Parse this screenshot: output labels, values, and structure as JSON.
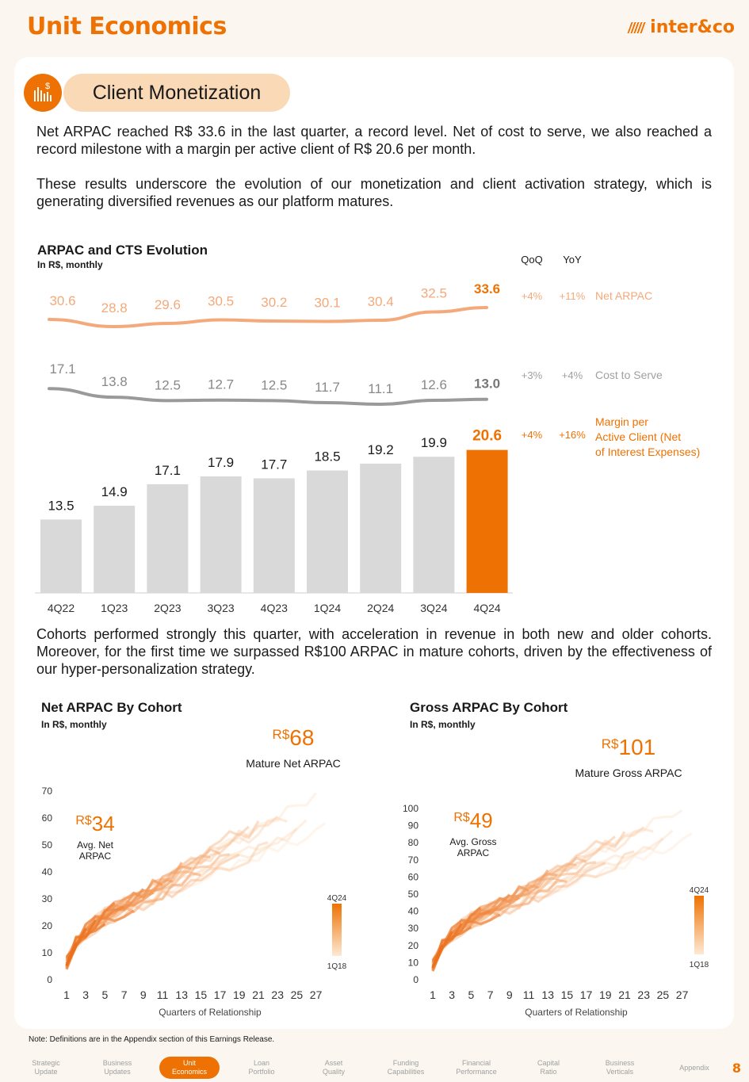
{
  "header": {
    "title": "Unit Economics",
    "logo": "inter&co"
  },
  "section": {
    "icon": "bar-chart-dollar-icon",
    "label": "Client Monetization"
  },
  "paragraphs": {
    "p1": "Net ARPAC reached R$ 33.6 in the last quarter, a record level. Net of cost to serve, we also reached a record milestone with a margin per active client of R$ 20.6 per month.",
    "p2": "These results underscore the evolution of our monetization and client activation strategy, which is generating diversified revenues as our platform matures.",
    "p3": "Cohorts performed strongly this quarter, with acceleration in revenue in both new and older cohorts. Moreover, for the first time we surpassed R$100 ARPAC in mature cohorts, driven by the effectiveness of our hyper-personalization strategy."
  },
  "colors": {
    "accent": "#ee7203",
    "light_accent": "#f4a97a",
    "grey_line": "#9a9a9a",
    "bar_grey": "#d9d9d9"
  },
  "chart_data": [
    {
      "type": "bar",
      "title": "ARPAC and CTS Evolution",
      "subtitle": "In R$, monthly",
      "categories": [
        "4Q22",
        "1Q23",
        "2Q23",
        "3Q23",
        "4Q23",
        "1Q24",
        "2Q24",
        "3Q24",
        "4Q24"
      ],
      "series": [
        {
          "name": "Net ARPAC",
          "type": "line",
          "values": [
            30.6,
            28.8,
            29.6,
            30.5,
            30.2,
            30.1,
            30.4,
            32.5,
            33.6
          ],
          "qoq": "+4%",
          "yoy": "+11%"
        },
        {
          "name": "Cost to Serve",
          "type": "line",
          "values": [
            17.1,
            13.8,
            12.5,
            12.7,
            12.5,
            11.7,
            11.1,
            12.6,
            13.0
          ],
          "qoq": "+3%",
          "yoy": "+4%"
        },
        {
          "name": "Margin per Active Client (Net of Interest Expenses)",
          "type": "bar",
          "values": [
            13.5,
            14.9,
            17.1,
            17.9,
            17.7,
            18.5,
            19.2,
            19.9,
            20.6
          ],
          "qoq": "+4%",
          "yoy": "+16%"
        }
      ],
      "labels": {
        "arpac": [
          "30.6",
          "28.8",
          "29.6",
          "30.5",
          "30.2",
          "30.1",
          "30.4",
          "32.5",
          "33.6"
        ],
        "cts": [
          "17.1",
          "13.8",
          "12.5",
          "12.7",
          "12.5",
          "11.7",
          "11.1",
          "12.6",
          "13.0"
        ],
        "margin": [
          "13.5",
          "14.9",
          "17.1",
          "17.9",
          "17.7",
          "18.5",
          "19.2",
          "19.9",
          "20.6"
        ]
      },
      "table_headers": {
        "qoq": "QoQ",
        "yoy": "YoY"
      },
      "legend": {
        "arpac": "Net ARPAC",
        "cts": "Cost to Serve",
        "margin_l1": "Margin per",
        "margin_l2": "Active Client (Net",
        "margin_l3": "of Interest Expenses)"
      }
    },
    {
      "type": "line",
      "title": "Net ARPAC By Cohort",
      "subtitle": "In R$, monthly",
      "xlabel": "Quarters of Relationship",
      "xticks": [
        "1",
        "3",
        "5",
        "7",
        "9",
        "11",
        "13",
        "15",
        "17",
        "19",
        "21",
        "23",
        "25",
        "27"
      ],
      "yticks": [
        "0",
        "10",
        "20",
        "30",
        "40",
        "50",
        "60",
        "70"
      ],
      "ylim": [
        0,
        70
      ],
      "mature_value": "68",
      "mature_label": "Mature Net ARPAC",
      "avg_value": "34",
      "avg_label_l1": "Avg. Net",
      "avg_label_l2": "ARPAC",
      "currency": "R$",
      "legend_top": "4Q24",
      "legend_bottom": "1Q18"
    },
    {
      "type": "line",
      "title": "Gross ARPAC By Cohort",
      "subtitle": "In R$, monthly",
      "xlabel": "Quarters of Relationship",
      "xticks": [
        "1",
        "3",
        "5",
        "7",
        "9",
        "11",
        "13",
        "15",
        "17",
        "19",
        "21",
        "23",
        "25",
        "27"
      ],
      "yticks": [
        "0",
        "10",
        "20",
        "30",
        "40",
        "50",
        "60",
        "70",
        "80",
        "90",
        "100"
      ],
      "ylim": [
        0,
        100
      ],
      "mature_value": "101",
      "mature_label": "Mature Gross ARPAC",
      "avg_value": "49",
      "avg_label_l1": "Avg. Gross",
      "avg_label_l2": "ARPAC",
      "currency": "R$",
      "legend_top": "4Q24",
      "legend_bottom": "1Q18"
    }
  ],
  "footer": {
    "note": "Note: Definitions are in the Appendix section of this Earnings Release.",
    "nav": [
      {
        "l1": "Strategic",
        "l2": "Update"
      },
      {
        "l1": "Business",
        "l2": "Updates"
      },
      {
        "l1": "Unit",
        "l2": "Economics"
      },
      {
        "l1": "Loan",
        "l2": "Portfolio"
      },
      {
        "l1": "Asset",
        "l2": "Quality"
      },
      {
        "l1": "Funding",
        "l2": "Capabilities"
      },
      {
        "l1": "Financial",
        "l2": "Performance"
      },
      {
        "l1": "Capital",
        "l2": "Ratio"
      },
      {
        "l1": "Business",
        "l2": "Verticals"
      },
      {
        "l1": "Appendix",
        "l2": ""
      }
    ],
    "page": "8"
  }
}
